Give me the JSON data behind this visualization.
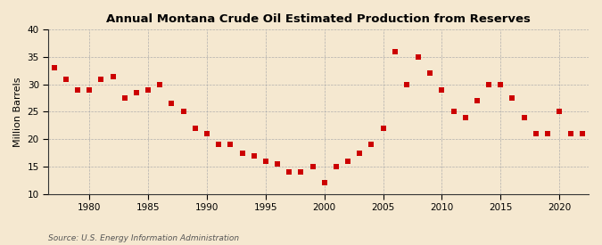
{
  "title": "Annual Montana Crude Oil Estimated Production from Reserves",
  "ylabel": "Million Barrels",
  "source": "Source: U.S. Energy Information Administration",
  "background_color": "#f5e8d0",
  "marker_color": "#cc0000",
  "marker": "s",
  "marker_size": 16,
  "xlim": [
    1976.5,
    2022.5
  ],
  "ylim": [
    10,
    40
  ],
  "yticks": [
    10,
    15,
    20,
    25,
    30,
    35,
    40
  ],
  "xticks": [
    1980,
    1985,
    1990,
    1995,
    2000,
    2005,
    2010,
    2015,
    2020
  ],
  "data": [
    [
      1977,
      33.0
    ],
    [
      1978,
      31.0
    ],
    [
      1979,
      29.0
    ],
    [
      1980,
      29.0
    ],
    [
      1981,
      31.0
    ],
    [
      1982,
      31.5
    ],
    [
      1983,
      27.5
    ],
    [
      1984,
      28.5
    ],
    [
      1985,
      29.0
    ],
    [
      1986,
      30.0
    ],
    [
      1987,
      26.5
    ],
    [
      1988,
      25.0
    ],
    [
      1989,
      22.0
    ],
    [
      1990,
      21.0
    ],
    [
      1991,
      19.0
    ],
    [
      1992,
      19.0
    ],
    [
      1993,
      17.5
    ],
    [
      1994,
      17.0
    ],
    [
      1995,
      16.0
    ],
    [
      1996,
      15.5
    ],
    [
      1997,
      14.0
    ],
    [
      1998,
      14.0
    ],
    [
      1999,
      15.0
    ],
    [
      2000,
      12.0
    ],
    [
      2001,
      15.0
    ],
    [
      2002,
      16.0
    ],
    [
      2003,
      17.5
    ],
    [
      2004,
      19.0
    ],
    [
      2005,
      22.0
    ],
    [
      2006,
      36.0
    ],
    [
      2007,
      30.0
    ],
    [
      2008,
      35.0
    ],
    [
      2009,
      32.0
    ],
    [
      2010,
      29.0
    ],
    [
      2011,
      25.0
    ],
    [
      2012,
      24.0
    ],
    [
      2013,
      27.0
    ],
    [
      2014,
      30.0
    ],
    [
      2015,
      30.0
    ],
    [
      2016,
      27.5
    ],
    [
      2017,
      24.0
    ],
    [
      2018,
      21.0
    ],
    [
      2019,
      21.0
    ],
    [
      2020,
      25.0
    ],
    [
      2021,
      21.0
    ],
    [
      2022,
      21.0
    ]
  ]
}
